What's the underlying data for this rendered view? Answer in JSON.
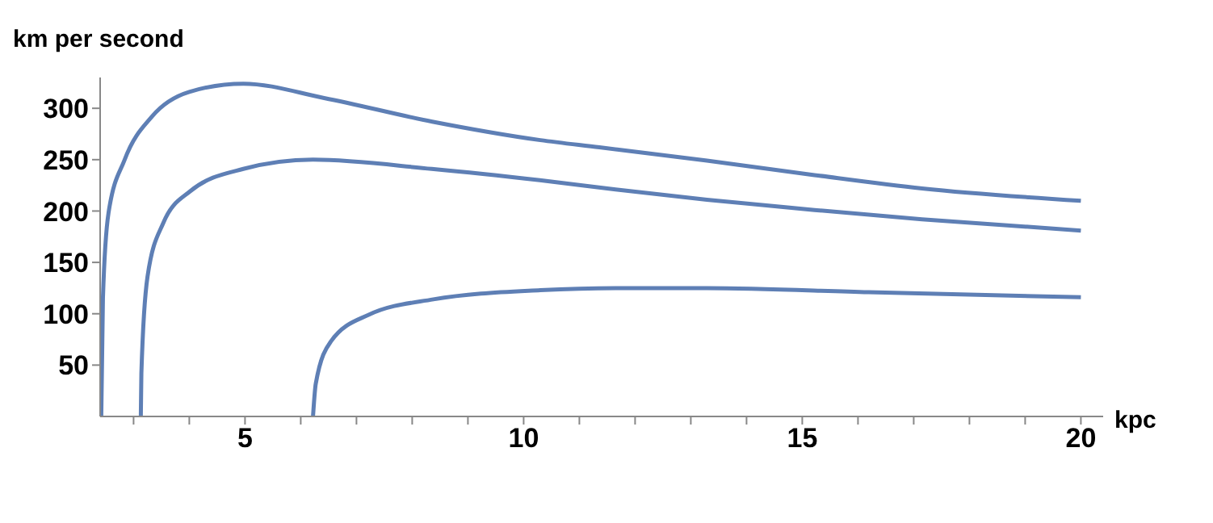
{
  "chart_data": {
    "type": "line",
    "xlabel": "kpc",
    "ylabel": "km per second",
    "xlim": [
      2.4,
      20.4
    ],
    "ylim": [
      0,
      330
    ],
    "xticks": [
      {
        "value": 3,
        "label": null
      },
      {
        "value": 4,
        "label": null
      },
      5,
      {
        "value": 6,
        "label": null
      },
      {
        "value": 7,
        "label": null
      },
      {
        "value": 8,
        "label": null
      },
      {
        "value": 9,
        "label": null
      },
      10,
      {
        "value": 11,
        "label": null
      },
      {
        "value": 12,
        "label": null
      },
      {
        "value": 13,
        "label": null
      },
      {
        "value": 14,
        "label": null
      },
      15,
      {
        "value": 16,
        "label": null
      },
      {
        "value": 17,
        "label": null
      },
      {
        "value": 18,
        "label": null
      },
      {
        "value": 19,
        "label": null
      },
      20
    ],
    "yticks": [
      50,
      100,
      150,
      200,
      250,
      300
    ],
    "grid": false,
    "legend": false,
    "marker": "none",
    "line_style": "solid",
    "series": [
      {
        "color": "#5e7fb5",
        "x": [
          2.42,
          2.45,
          2.55,
          2.84,
          3.33,
          4.0,
          4.97,
          6.42,
          8.36,
          10.3,
          11.36,
          13.29,
          15.22,
          17.15,
          20
        ],
        "values": [
          0,
          115,
          198,
          250,
          292,
          316,
          324,
          310,
          287,
          269,
          262,
          249,
          235,
          222,
          210
        ]
      },
      {
        "color": "#5e7fb5",
        "x": [
          3.13,
          3.14,
          3.25,
          3.53,
          4.01,
          4.97,
          6.22,
          8.35,
          10.29,
          11.65,
          13.29,
          15.22,
          17.15,
          20
        ],
        "values": [
          0,
          42,
          136,
          188,
          219,
          241,
          250,
          241,
          230,
          221,
          211,
          201,
          192,
          181
        ]
      },
      {
        "color": "#5e7fb5",
        "x": [
          6.22,
          6.27,
          6.54,
          7.22,
          8.38,
          10.3,
          11.65,
          13.29,
          16.19,
          20
        ],
        "values": [
          0,
          32,
          73,
          99,
          114,
          123,
          125,
          125,
          121,
          116
        ]
      }
    ]
  }
}
